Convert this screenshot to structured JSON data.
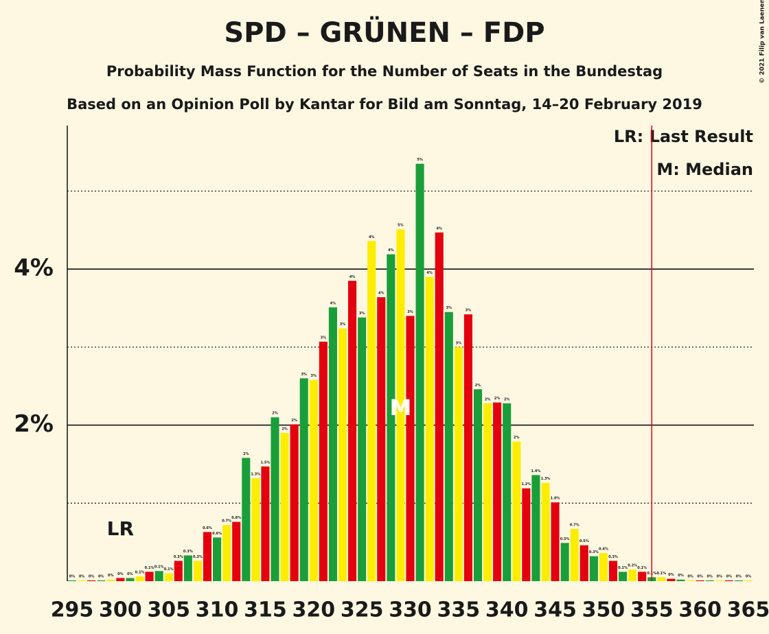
{
  "chart_data": {
    "type": "bar",
    "title": "SPD – GRÜNEN – FDP",
    "subtitle": "Probability Mass Function for the Number of Seats in the Bundestag",
    "subtitle2": "Based on an Opinion Poll by Kantar for Bild am Sonntag, 14–20 February 2019",
    "copyright": "© 2021 Filip van Laenen",
    "x": [
      295,
      296,
      297,
      298,
      299,
      300,
      301,
      302,
      303,
      304,
      305,
      306,
      307,
      308,
      309,
      310,
      311,
      312,
      313,
      314,
      315,
      316,
      317,
      318,
      319,
      320,
      321,
      322,
      323,
      324,
      325,
      326,
      327,
      328,
      329,
      330,
      331,
      332,
      333,
      334,
      335,
      336,
      337,
      338,
      339,
      340,
      341,
      342,
      343,
      344,
      345,
      346,
      347,
      348,
      349,
      350,
      351,
      352,
      353,
      354,
      355,
      356,
      357,
      358,
      359,
      360,
      361,
      362,
      363,
      364,
      365
    ],
    "values": [
      0.01,
      0.01,
      0.01,
      0.01,
      0.02,
      0.04,
      0.04,
      0.06,
      0.12,
      0.13,
      0.1,
      0.26,
      0.33,
      0.26,
      0.63,
      0.56,
      0.72,
      0.76,
      1.58,
      1.32,
      1.47,
      2.1,
      1.9,
      2.01,
      2.6,
      2.58,
      3.07,
      3.51,
      3.24,
      3.85,
      3.38,
      4.36,
      3.64,
      4.19,
      4.51,
      3.4,
      5.35,
      3.9,
      4.47,
      3.45,
      3.0,
      3.42,
      2.46,
      2.28,
      2.29,
      2.28,
      1.79,
      1.19,
      1.36,
      1.26,
      1.01,
      0.49,
      0.67,
      0.46,
      0.32,
      0.36,
      0.26,
      0.12,
      0.15,
      0.12,
      0.05,
      0.05,
      0.03,
      0.02,
      0.01,
      0.01,
      0.01,
      0.01,
      0.01,
      0.01,
      0.01
    ],
    "value_labels": [
      "0%",
      "0%",
      "0%",
      "0%",
      "0%",
      "0%",
      "0%",
      "0.1%",
      "0.1%",
      "0.1%",
      "0.1%",
      "0.3%",
      "0.3%",
      "0.3%",
      "0.6%",
      "0.6%",
      "0.7%",
      "0.8%",
      "2%",
      "1.3%",
      "1.5%",
      "2%",
      "2%",
      "2%",
      "3%",
      "3%",
      "3%",
      "4%",
      "3%",
      "4%",
      "3%",
      "4%",
      "4%",
      "4%",
      "5%",
      "3%",
      "5%",
      "4%",
      "4%",
      "3%",
      "3%",
      "3%",
      "2%",
      "2%",
      "2%",
      "2%",
      "2%",
      "1.2%",
      "1.4%",
      "1.3%",
      "1.0%",
      "0.5%",
      "0.7%",
      "0.5%",
      "0.3%",
      "0.4%",
      "0.3%",
      "0.1%",
      "0.2%",
      "0.1%",
      "0.1%",
      "0.1%",
      "0%",
      "0%",
      "0%",
      "0%",
      "0%",
      "0%",
      "0%",
      "0%",
      "0%"
    ],
    "palette": [
      "#1a9e3a",
      "#ffed00",
      "#e3000f"
    ],
    "xlim": [
      295,
      365
    ],
    "xticks": [
      295,
      300,
      305,
      310,
      315,
      320,
      325,
      330,
      335,
      340,
      345,
      350,
      355,
      360,
      365
    ],
    "ylim": [
      0,
      5.84
    ],
    "yticks": [
      {
        "value": 2,
        "label": "2%"
      },
      {
        "value": 4,
        "label": "4%"
      }
    ],
    "minor_gridlines": [
      1,
      3,
      5
    ],
    "majority_line": 355,
    "last_result": 300,
    "last_result_label": "LR",
    "median": 329,
    "median_label": "M",
    "legend": [
      "LR: Last Result",
      "M: Median"
    ]
  }
}
